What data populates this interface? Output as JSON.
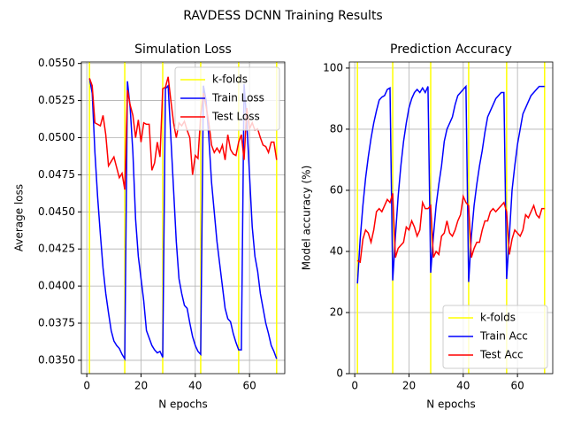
{
  "title": "RAVDESS DCNN Training Results",
  "chart_data": [
    {
      "type": "line",
      "title": "Simulation Loss",
      "x_label": "N epochs",
      "y_label": "Average loss",
      "x": [
        1,
        2,
        3,
        4,
        5,
        6,
        7,
        8,
        9,
        10,
        11,
        12,
        13,
        14,
        15,
        16,
        17,
        18,
        19,
        20,
        21,
        22,
        23,
        24,
        25,
        26,
        27,
        28,
        29,
        30,
        31,
        32,
        33,
        34,
        35,
        36,
        37,
        38,
        39,
        40,
        41,
        42,
        43,
        44,
        45,
        46,
        47,
        48,
        49,
        50,
        51,
        52,
        53,
        54,
        55,
        56,
        57,
        58,
        59,
        60,
        61,
        62,
        63,
        64,
        65,
        66,
        67,
        68,
        69,
        70
      ],
      "series": [
        {
          "name": "k-folds",
          "color": "#ffff00",
          "x": [
            1,
            14,
            28,
            42,
            56,
            70
          ]
        },
        {
          "name": "Train Loss",
          "color": "#0000ff",
          "values": [
            0.054,
            0.053,
            0.049,
            0.046,
            0.0435,
            0.0412,
            0.0395,
            0.0382,
            0.037,
            0.0363,
            0.036,
            0.0358,
            0.0354,
            0.0351,
            0.0538,
            0.052,
            0.049,
            0.0445,
            0.042,
            0.0405,
            0.039,
            0.037,
            0.0365,
            0.036,
            0.0357,
            0.0355,
            0.0356,
            0.0352,
            0.0533,
            0.0535,
            0.05,
            0.0465,
            0.043,
            0.0405,
            0.0395,
            0.0387,
            0.0385,
            0.0375,
            0.0366,
            0.036,
            0.0356,
            0.0354,
            0.0535,
            0.0525,
            0.05,
            0.047,
            0.045,
            0.043,
            0.0415,
            0.04,
            0.0385,
            0.0378,
            0.0376,
            0.0368,
            0.0362,
            0.0357,
            0.0357,
            0.0536,
            0.051,
            0.0475,
            0.044,
            0.042,
            0.041,
            0.0395,
            0.0385,
            0.0375,
            0.0368,
            0.036,
            0.0356,
            0.0351
          ]
        },
        {
          "name": "Test Loss",
          "color": "#ff0000",
          "values": [
            0.054,
            0.0535,
            0.051,
            0.0509,
            0.0508,
            0.0515,
            0.0502,
            0.0481,
            0.0484,
            0.0487,
            0.048,
            0.0473,
            0.0476,
            0.0465,
            0.0532,
            0.0522,
            0.0515,
            0.05,
            0.0512,
            0.0497,
            0.051,
            0.0509,
            0.0509,
            0.0478,
            0.0483,
            0.0497,
            0.0487,
            0.0533,
            0.0534,
            0.0541,
            0.0525,
            0.051,
            0.05,
            0.051,
            0.0508,
            0.0511,
            0.0505,
            0.05,
            0.0475,
            0.0488,
            0.0486,
            0.0515,
            0.053,
            0.0521,
            0.051,
            0.0495,
            0.049,
            0.0493,
            0.049,
            0.0495,
            0.0485,
            0.0502,
            0.0492,
            0.0489,
            0.0488,
            0.0497,
            0.0502,
            0.0485,
            0.052,
            0.0506,
            0.051,
            0.0505,
            0.0506,
            0.05,
            0.0495,
            0.0494,
            0.049,
            0.0497,
            0.0497,
            0.0485
          ]
        }
      ],
      "xlim": [
        -2,
        73
      ],
      "xticks": [
        0,
        20,
        40,
        60
      ],
      "ylim": [
        0.0341,
        0.0551
      ],
      "yticks": [
        {
          "value": 0.035,
          "label": "0.0350"
        },
        0.0375,
        {
          "value": 0.04,
          "label": "0.0400"
        },
        0.0425,
        {
          "value": 0.045,
          "label": "0.0450"
        },
        0.0475,
        {
          "value": 0.05,
          "label": "0.0500"
        },
        0.0525,
        {
          "value": 0.055,
          "label": "0.0550"
        }
      ],
      "grid": true,
      "legend": "upper right"
    },
    {
      "type": "line",
      "title": "Prediction Accuracy",
      "x_label": "N epochs",
      "y_label": "Model accuracy (%)",
      "x": [
        1,
        2,
        3,
        4,
        5,
        6,
        7,
        8,
        9,
        10,
        11,
        12,
        13,
        14,
        15,
        16,
        17,
        18,
        19,
        20,
        21,
        22,
        23,
        24,
        25,
        26,
        27,
        28,
        29,
        30,
        31,
        32,
        33,
        34,
        35,
        36,
        37,
        38,
        39,
        40,
        41,
        42,
        43,
        44,
        45,
        46,
        47,
        48,
        49,
        50,
        51,
        52,
        53,
        54,
        55,
        56,
        57,
        58,
        59,
        60,
        61,
        62,
        63,
        64,
        65,
        66,
        67,
        68,
        69,
        70
      ],
      "series": [
        {
          "name": "k-folds",
          "color": "#ffff00",
          "x": [
            1,
            14,
            28,
            42,
            56,
            70
          ]
        },
        {
          "name": "Train Acc",
          "color": "#0000ff",
          "values": [
            29.5,
            44,
            55,
            64,
            71,
            77,
            82,
            86,
            89.5,
            90.5,
            91,
            93,
            93.5,
            30.5,
            45,
            58,
            68,
            76,
            82,
            87,
            90,
            92,
            93,
            92,
            93.5,
            92,
            94,
            33,
            45,
            55,
            62,
            68,
            76,
            80,
            82,
            84,
            88,
            91,
            92,
            93,
            94,
            30,
            45,
            55,
            62,
            68,
            73,
            79,
            84,
            86,
            88,
            90,
            91,
            92,
            92,
            31,
            45,
            60,
            68,
            75,
            80,
            85,
            87,
            89,
            91,
            92,
            93,
            94,
            94,
            94
          ]
        },
        {
          "name": "Test Acc",
          "color": "#ff0000",
          "values": [
            37,
            36.5,
            44,
            47,
            46,
            43,
            47,
            53,
            54,
            53,
            55,
            57,
            56,
            59,
            38,
            41,
            42,
            43,
            48,
            47,
            50,
            48,
            45,
            47,
            56,
            54,
            54,
            55,
            38,
            40,
            39,
            45,
            46,
            50,
            46,
            45,
            47,
            50,
            52,
            58,
            56,
            55,
            38,
            41,
            43,
            43,
            47,
            50,
            50,
            53,
            54,
            53,
            54,
            55,
            56,
            53,
            39,
            44,
            47,
            46,
            45,
            47,
            52,
            51,
            53,
            55,
            52,
            51,
            54,
            54
          ]
        }
      ],
      "xlim": [
        -2,
        73
      ],
      "xticks": [
        0,
        20,
        40,
        60
      ],
      "ylim": [
        0,
        102
      ],
      "yticks": [
        0,
        20,
        40,
        60,
        80,
        100
      ],
      "grid": true,
      "legend": "lower right"
    }
  ]
}
